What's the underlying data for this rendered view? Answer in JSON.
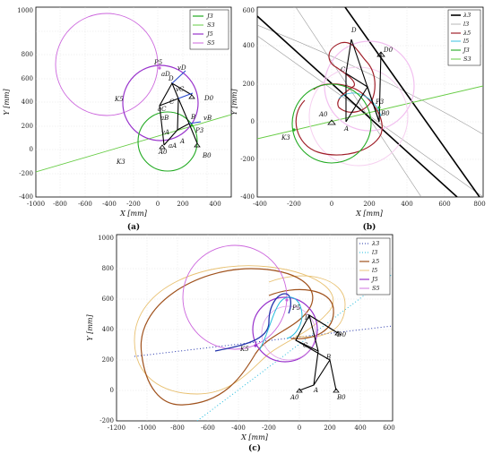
{
  "panels": [
    {
      "id": "a",
      "caption": "(a)",
      "xlabel": "X [mm]",
      "ylabel": "Y [mm]",
      "xticks": [
        "-1000",
        "-800",
        "-600",
        "-400",
        "-200",
        "0",
        "200",
        "400"
      ],
      "yticks": [
        "-400",
        "-200",
        "0",
        "200",
        "400",
        "600",
        "800",
        "1000"
      ],
      "legend": [
        "J3",
        "S3",
        "J5",
        "S5"
      ],
      "labels": [
        "P5",
        "vD",
        "aD",
        "D",
        "vC",
        "D0",
        "K5",
        "C",
        "aC",
        "aB",
        "B",
        "vB",
        "P3",
        "vA",
        "A",
        "aA",
        "K3",
        "A0",
        "B0"
      ]
    },
    {
      "id": "b",
      "caption": "(b)",
      "xlabel": "X [mm]",
      "ylabel": "Y [mm]",
      "xticks": [
        "-400",
        "-200",
        "0",
        "200",
        "400",
        "600",
        "800"
      ],
      "yticks": [
        "-400",
        "-200",
        "0",
        "200",
        "400",
        "600"
      ],
      "legend": [
        "λ3",
        "l3",
        "λ5",
        "l5",
        "J3",
        "S3"
      ],
      "labels": [
        "D",
        "D0",
        "C",
        "P3",
        "A0",
        "B0",
        "A",
        "K3"
      ]
    },
    {
      "id": "c",
      "caption": "(c)",
      "xlabel": "X [mm]",
      "ylabel": "Y [mm]",
      "xticks": [
        "-1200",
        "-1000",
        "-800",
        "-600",
        "-400",
        "-200",
        "0",
        "200",
        "400",
        "600"
      ],
      "yticks": [
        "-200",
        "0",
        "200",
        "400",
        "600",
        "800",
        "1000"
      ],
      "legend": [
        "λ3",
        "l3",
        "λ5",
        "l5",
        "J5",
        "S5"
      ],
      "labels": [
        "P5",
        "D",
        "D0",
        "K5",
        "C",
        "B",
        "A0",
        "A",
        "B0"
      ]
    }
  ],
  "colors": {
    "J3": "#22aa22",
    "S3": "#66cc44",
    "J5": "#9933cc",
    "S5": "#cc66dd",
    "lambda3": "#2233aa",
    "l3": "#22bbdd",
    "lambda5": "#a0521d",
    "l5": "#e0b060",
    "mechanism": "#000000"
  }
}
